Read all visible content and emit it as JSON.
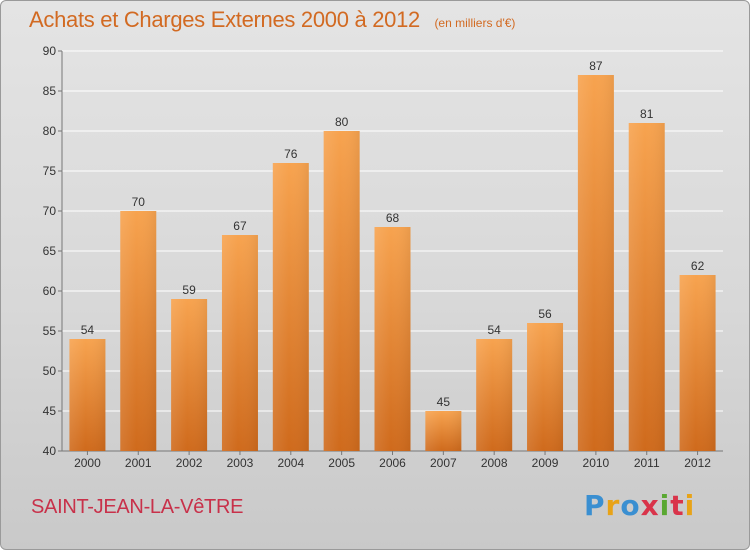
{
  "header": {
    "title": "Achats et Charges Externes 2000 à 2012",
    "subtitle": "(en milliers d'€)"
  },
  "footer": {
    "commune": "SAINT-JEAN-LA-VêTRE",
    "brand": "Proxiti",
    "brand_colors": [
      "#3a8fd1",
      "#e8a317",
      "#3a8fd1",
      "#d9344a",
      "#5aa832",
      "#d9344a",
      "#e8a317"
    ]
  },
  "colors": {
    "bar_light": "#f7a34f",
    "bar_dark": "#cf6a1c",
    "grid": "#ffffff"
  },
  "chart_data": {
    "type": "bar",
    "title": "Achats et Charges Externes 2000 à 2012",
    "subtitle": "(en milliers d'€)",
    "categories": [
      "2000",
      "2001",
      "2002",
      "2003",
      "2004",
      "2005",
      "2006",
      "2007",
      "2008",
      "2009",
      "2010",
      "2011",
      "2012"
    ],
    "values": [
      54,
      70,
      59,
      67,
      76,
      80,
      68,
      45,
      54,
      56,
      87,
      81,
      62
    ],
    "ylim": [
      40,
      90
    ],
    "yticks": [
      40,
      45,
      50,
      55,
      60,
      65,
      70,
      75,
      80,
      85,
      90
    ],
    "grid": true,
    "data_labels": true
  }
}
